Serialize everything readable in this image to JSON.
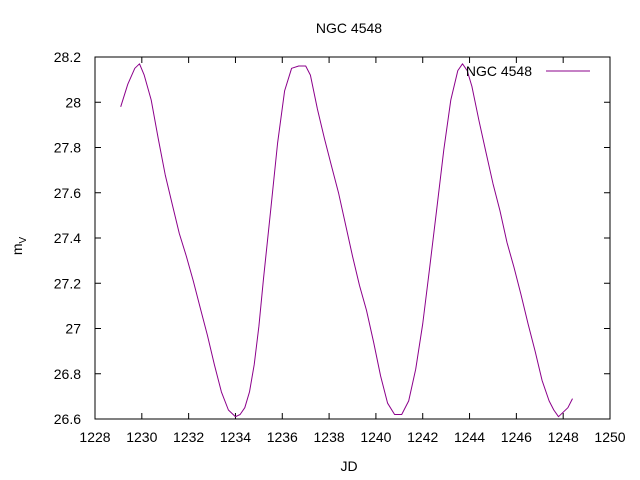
{
  "chart_data": {
    "type": "line",
    "title": "NGC 4548",
    "xlabel": "JD",
    "ylabel_main": "m",
    "ylabel_sub": "V",
    "xlim": [
      1228,
      1250
    ],
    "ylim": [
      26.6,
      28.2
    ],
    "xticks": [
      "1228",
      "1230",
      "1232",
      "1234",
      "1236",
      "1238",
      "1240",
      "1242",
      "1244",
      "1246",
      "1248",
      "1250"
    ],
    "yticks": [
      "26.6",
      "26.8",
      "27",
      "27.2",
      "27.4",
      "27.6",
      "27.8",
      "28",
      "28.2"
    ],
    "grid": false,
    "legend_position": "top-right",
    "series": [
      {
        "name": "NGC 4548",
        "color": "#8b008b",
        "x": [
          1229.1,
          1229.4,
          1229.7,
          1229.9,
          1230.1,
          1230.4,
          1230.7,
          1231.0,
          1231.3,
          1231.6,
          1231.9,
          1232.2,
          1232.5,
          1232.8,
          1233.1,
          1233.4,
          1233.7,
          1234.0,
          1234.2,
          1234.4,
          1234.6,
          1234.8,
          1235.0,
          1235.2,
          1235.5,
          1235.8,
          1236.1,
          1236.4,
          1236.7,
          1237.0,
          1237.2,
          1237.5,
          1237.8,
          1238.1,
          1238.4,
          1238.7,
          1239.0,
          1239.3,
          1239.6,
          1239.9,
          1240.2,
          1240.5,
          1240.8,
          1241.1,
          1241.4,
          1241.7,
          1242.0,
          1242.3,
          1242.6,
          1242.9,
          1243.2,
          1243.5,
          1243.7,
          1243.9,
          1244.1,
          1244.4,
          1244.7,
          1245.0,
          1245.3,
          1245.6,
          1245.9,
          1246.2,
          1246.5,
          1246.8,
          1247.1,
          1247.4,
          1247.6,
          1247.8,
          1248.0,
          1248.2,
          1248.4
        ],
        "y": [
          27.98,
          28.08,
          28.15,
          28.17,
          28.12,
          28.01,
          27.84,
          27.68,
          27.55,
          27.42,
          27.32,
          27.21,
          27.09,
          26.97,
          26.84,
          26.72,
          26.64,
          26.61,
          26.62,
          26.65,
          26.72,
          26.84,
          27.01,
          27.22,
          27.52,
          27.82,
          28.05,
          28.15,
          28.16,
          28.16,
          28.12,
          27.97,
          27.84,
          27.72,
          27.6,
          27.46,
          27.32,
          27.19,
          27.08,
          26.94,
          26.79,
          26.67,
          26.62,
          26.62,
          26.68,
          26.82,
          27.02,
          27.27,
          27.53,
          27.79,
          28.01,
          28.14,
          28.17,
          28.14,
          28.07,
          27.92,
          27.78,
          27.64,
          27.52,
          27.38,
          27.27,
          27.15,
          27.02,
          26.9,
          26.77,
          26.68,
          26.64,
          26.61,
          26.63,
          26.65,
          26.69
        ]
      }
    ]
  }
}
